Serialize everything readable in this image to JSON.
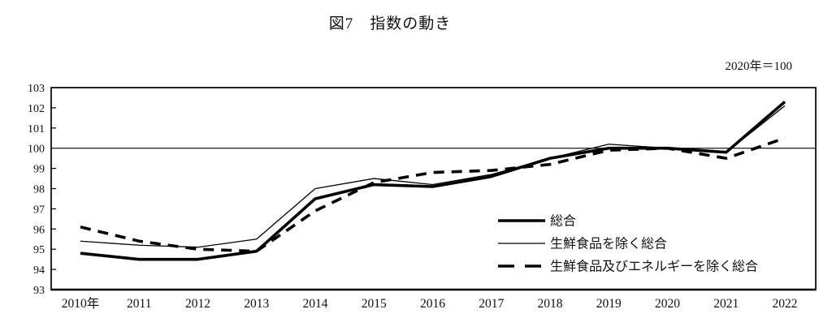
{
  "page": {
    "title": "図7　指数の動き",
    "axis_note": "2020年＝100"
  },
  "chart_data": {
    "type": "line",
    "title": "図7　指数の動き",
    "subtitle": "2020年＝100",
    "xlabel": "",
    "ylabel": "",
    "x_labels": [
      "2010年",
      "2011",
      "2012",
      "2013",
      "2014",
      "2015",
      "2016",
      "2017",
      "2018",
      "2019",
      "2020",
      "2021",
      "2022"
    ],
    "years": [
      2010,
      2011,
      2012,
      2013,
      2014,
      2015,
      2016,
      2017,
      2018,
      2019,
      2020,
      2021,
      2022
    ],
    "series": [
      {
        "name": "総合",
        "style": "thick-solid",
        "values": [
          94.8,
          94.5,
          94.5,
          94.9,
          97.5,
          98.2,
          98.1,
          98.6,
          99.5,
          100.0,
          100.0,
          99.8,
          102.3
        ]
      },
      {
        "name": "生鮮食品を除く総合",
        "style": "thin-solid",
        "values": [
          95.4,
          95.2,
          95.1,
          95.5,
          98.0,
          98.5,
          98.2,
          98.7,
          99.5,
          100.2,
          100.0,
          99.8,
          102.1
        ]
      },
      {
        "name": "生鮮食品及びエネルギーを除く総合",
        "style": "thick-dashed",
        "values": [
          96.1,
          95.4,
          95.0,
          94.9,
          96.9,
          98.3,
          98.8,
          98.9,
          99.2,
          99.9,
          100.0,
          99.5,
          100.5
        ]
      }
    ],
    "ylim": [
      93,
      103
    ],
    "yticks": [
      93,
      94,
      95,
      96,
      97,
      98,
      99,
      100,
      101,
      102,
      103
    ],
    "reference_line": 100,
    "grid": false,
    "legend_position": "inside-bottom-right",
    "colors": {
      "line": "#000000",
      "background": "#ffffff",
      "text": "#111111"
    }
  }
}
